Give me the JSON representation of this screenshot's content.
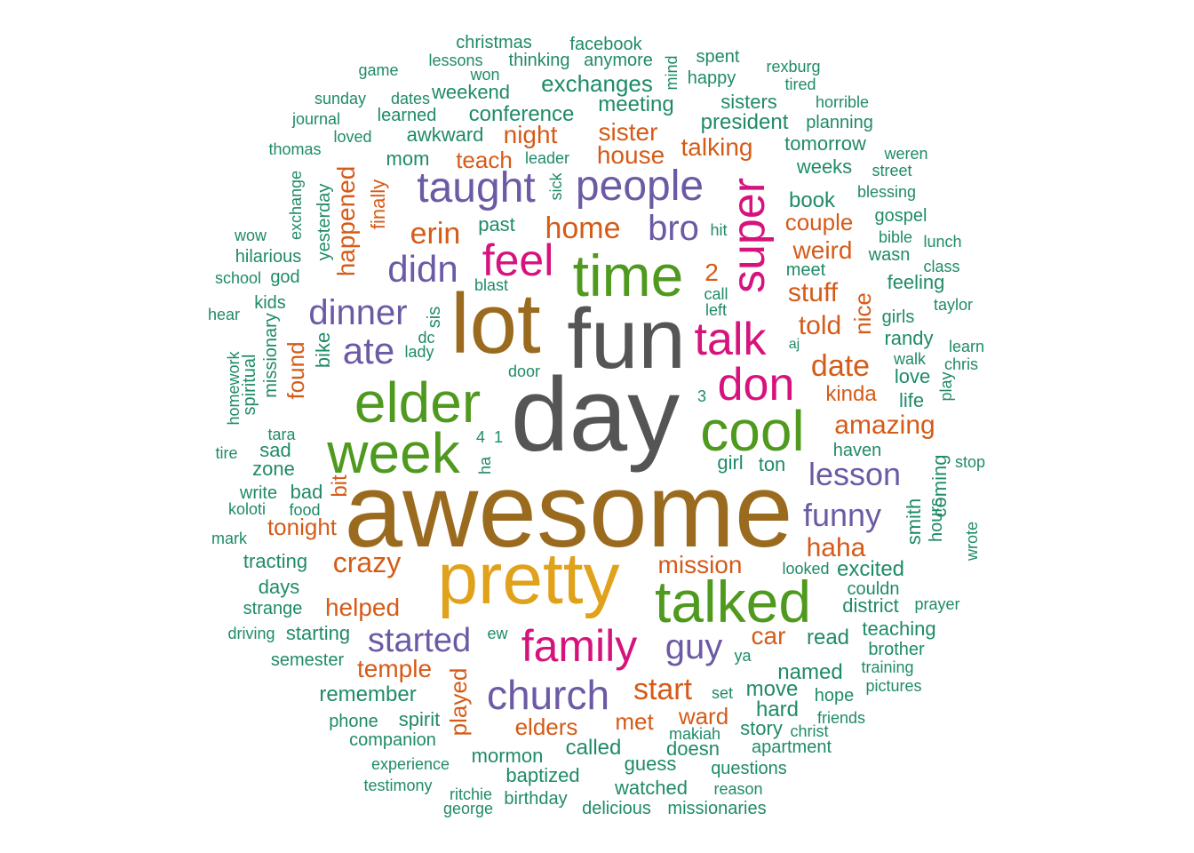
{
  "palette": {
    "grey": "#555555",
    "brown": "#9a6a1f",
    "gold": "#e0a11b",
    "green": "#4f9a1e",
    "magenta": "#d6137d",
    "purple": "#6c5aa4",
    "orange": "#d55b18",
    "teal": "#1f8a69"
  },
  "words": [
    "awesome",
    "day",
    "fun",
    "lot",
    "pretty",
    "talked",
    "time",
    "elder",
    "week",
    "cool",
    "family",
    "church",
    "feel",
    "talk",
    "don",
    "super",
    "people",
    "taught",
    "didn",
    "dinner",
    "ate",
    "bro",
    "guy",
    "started",
    "lesson",
    "funny",
    "start",
    "erin",
    "home",
    "date",
    "told",
    "haha",
    "amazing",
    "crazy",
    "mission",
    "stuff",
    "weird",
    "helped",
    "temple",
    "tonight",
    "car",
    "played",
    "elders",
    "met",
    "ward",
    "sister",
    "house",
    "talking",
    "night",
    "teach",
    "happened",
    "found",
    "nice",
    "bit",
    "kinda",
    "couple",
    "2",
    "exchanges",
    "conference",
    "awkward",
    "meeting",
    "president",
    "weekend",
    "christmas",
    "facebook",
    "lessons",
    "thinking",
    "anymore",
    "won",
    "game",
    "spent",
    "rexburg",
    "tired",
    "happy",
    "sisters",
    "horrible",
    "planning",
    "sunday",
    "dates",
    "learned",
    "journal",
    "loved",
    "mom",
    "leader",
    "sick",
    "thomas",
    "tomorrow",
    "weeks",
    "weren",
    "street",
    "book",
    "blessing",
    "gospel",
    "bible",
    "lunch",
    "wow",
    "hilarious",
    "god",
    "school",
    "kids",
    "yesterday",
    "exchange",
    "finally",
    "past",
    "hit",
    "meet",
    "wasn",
    "class",
    "feeling",
    "taylor",
    "blast",
    "call",
    "left",
    "sis",
    "dc",
    "lady",
    "aj",
    "girls",
    "randy",
    "learn",
    "walk",
    "chris",
    "love",
    "life",
    "play",
    "hear",
    "homework",
    "spiritual",
    "missionary",
    "bike",
    "door",
    "3",
    "tara",
    "tire",
    "sad",
    "zone",
    "4",
    "1",
    "ha",
    "girl",
    "ton",
    "haven",
    "stop",
    "write",
    "bad",
    "koloti",
    "food",
    "smith",
    "coming",
    "hours",
    "wrote",
    "mark",
    "tracting",
    "days",
    "strange",
    "looked",
    "excited",
    "couldn",
    "district",
    "prayer",
    "driving",
    "starting",
    "semester",
    "ew",
    "read",
    "teaching",
    "brother",
    "ya",
    "named",
    "training",
    "remember",
    "move",
    "hope",
    "pictures",
    "set",
    "phone",
    "spirit",
    "hard",
    "friends",
    "makiah",
    "story",
    "christ",
    "companion",
    "called",
    "doesn",
    "apartment",
    "mormon",
    "experience",
    "guess",
    "questions",
    "testimony",
    "ritchie",
    "baptized",
    "watched",
    "reason",
    "george",
    "birthday",
    "delicious",
    "missionaries",
    "mind"
  ]
}
